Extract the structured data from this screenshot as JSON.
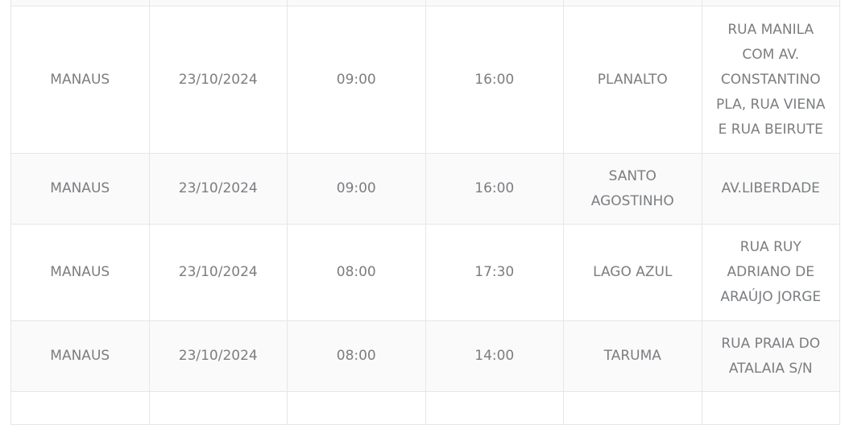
{
  "table": {
    "rows": [
      {
        "cells": [
          "MANAUS",
          "23/10/2024",
          "09:00",
          "16:00",
          "PLANALTO",
          "RUA MANILA COM AV. CONSTANTINO PLA, RUA VIENA E RUA BEIRUTE"
        ]
      },
      {
        "cells": [
          "MANAUS",
          "23/10/2024",
          "09:00",
          "16:00",
          "SANTO AGOSTINHO",
          "AV.LIBERDADE"
        ]
      },
      {
        "cells": [
          "MANAUS",
          "23/10/2024",
          "08:00",
          "17:30",
          "LAGO AZUL",
          "RUA RUY ADRIANO DE ARAÚJO JORGE"
        ]
      },
      {
        "cells": [
          "MANAUS",
          "23/10/2024",
          "08:00",
          "14:00",
          "TARUMA",
          "RUA PRAIA DO ATALAIA S/N"
        ]
      }
    ]
  },
  "colors": {
    "text": "#7b7d80",
    "border": "#e6e6e6",
    "alt_row": "#fafafa"
  }
}
